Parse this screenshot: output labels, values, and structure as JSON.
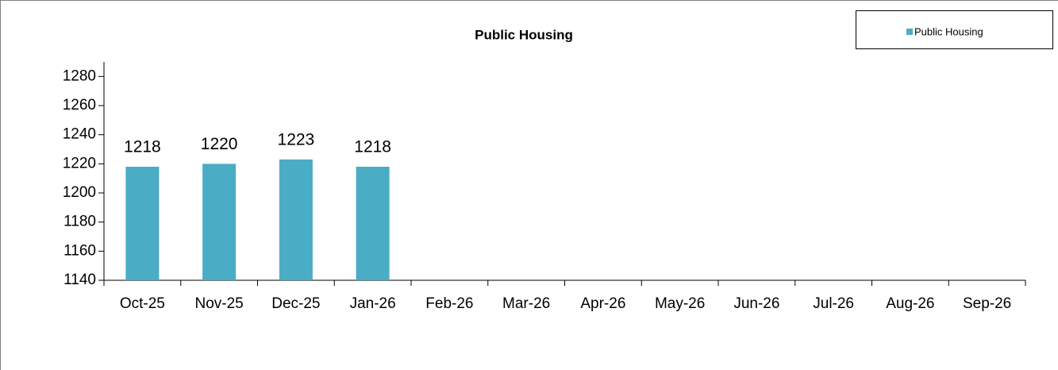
{
  "chart_data": {
    "type": "bar",
    "title": "Public Housing",
    "categories": [
      "Oct-25",
      "Nov-25",
      "Dec-25",
      "Jan-26",
      "Feb-26",
      "Mar-26",
      "Apr-26",
      "May-26",
      "Jun-26",
      "Jul-26",
      "Aug-26",
      "Sep-26"
    ],
    "series": [
      {
        "name": "Public Housing",
        "color": "#4bacc6",
        "values": [
          1218,
          1220,
          1223,
          1218,
          null,
          null,
          null,
          null,
          null,
          null,
          null,
          null
        ]
      }
    ],
    "ylim": [
      1140,
      1290
    ],
    "yticks": [
      1140,
      1160,
      1180,
      1200,
      1220,
      1240,
      1260,
      1280
    ],
    "legend": "top-right"
  }
}
